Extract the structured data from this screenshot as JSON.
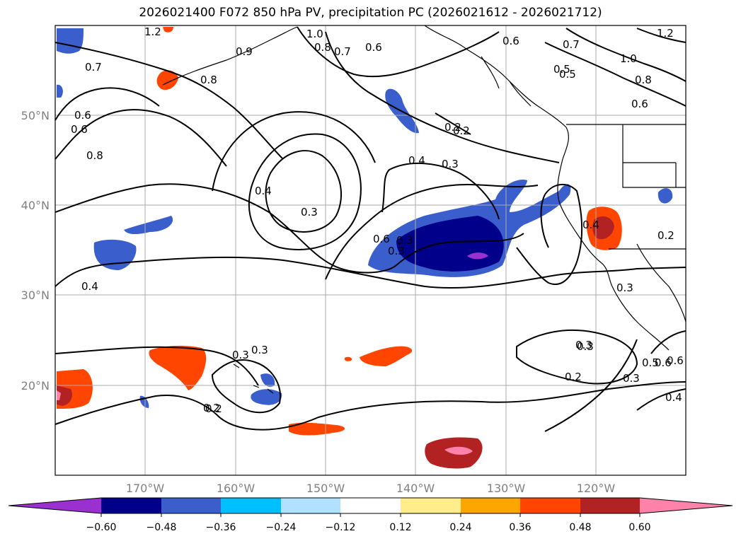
{
  "title": "2026021400 F072 850 hPa PV, precipitation PC (2026021612 - 2026021712)",
  "lat_labels": [
    "50°N",
    "40°N",
    "30°N",
    "20°N"
  ],
  "lon_labels": [
    "170°W",
    "160°W",
    "150°W",
    "140°W",
    "130°W",
    "120°W"
  ],
  "colorbar": {
    "colors": [
      "#9b30d0",
      "#00008b",
      "#3a5fcd",
      "#00bfff",
      "#b0e2ff",
      "#ffffff",
      "#ffec8b",
      "#ffa500",
      "#ff4500",
      "#b22222",
      "#ff82ab"
    ],
    "tick_labels": [
      "−0.60",
      "−0.48",
      "−0.36",
      "−0.24",
      "−0.12",
      "0.12",
      "0.24",
      "0.36",
      "0.48",
      "0.60"
    ]
  },
  "contour_labels": [
    "1.2",
    "1.0",
    "0.9",
    "0.8",
    "0.7",
    "0.6",
    "0.7",
    "0.6",
    "0.8",
    "0.6",
    "0.8",
    "0.4",
    "0.3",
    "0.4",
    "0.3",
    "0.2",
    "0.6",
    "0.5",
    "0.3",
    "0.4",
    "0.2",
    "0.3",
    "0.3",
    "0.2",
    "0.2",
    "0.3",
    "0.3",
    "0.5",
    "0.6",
    "0.4",
    "0.6",
    "1.0",
    "0.8",
    "0.6",
    "0.5",
    "0.7",
    "1.2",
    "0.6",
    "0.2",
    "0.3",
    "0.4",
    "0.3",
    "0.3",
    "0.2"
  ]
}
